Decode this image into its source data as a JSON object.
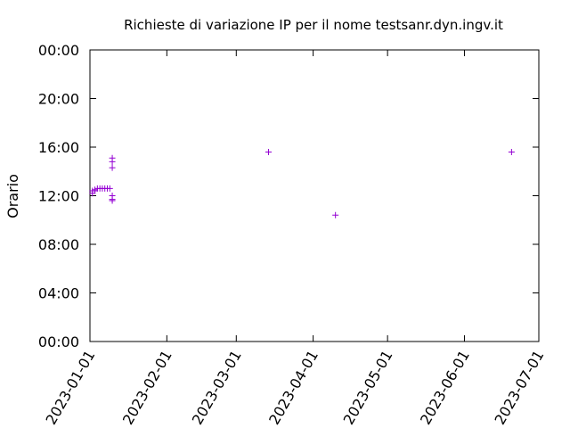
{
  "chart_data": {
    "type": "scatter",
    "title": "Richieste di variazione IP per il nome testsanr.dyn.ingv.it",
    "y_label": "Orario",
    "x": [
      "2023-01-02",
      "2023-01-02",
      "2023-01-03",
      "2023-01-03",
      "2023-01-04",
      "2023-01-05",
      "2023-01-06",
      "2023-01-07",
      "2023-01-08",
      "2023-01-09",
      "2023-01-10",
      "2023-01-10",
      "2023-01-10",
      "2023-01-10",
      "2023-01-10",
      "2023-01-10",
      "2023-03-14",
      "2023-04-10",
      "2023-06-20"
    ],
    "values": [
      12.2,
      12.4,
      12.4,
      12.5,
      12.6,
      12.6,
      12.6,
      12.6,
      12.6,
      12.6,
      15.1,
      14.8,
      14.3,
      12.0,
      11.7,
      11.6,
      15.6,
      10.4,
      15.6
    ],
    "color": "#9400d3",
    "xlim": [
      "2023-01-01",
      "2023-07-01"
    ],
    "xticks": [
      "2023-01-01",
      "2023-02-01",
      "2023-03-01",
      "2023-04-01",
      "2023-05-01",
      "2023-06-01",
      "2023-07-01"
    ],
    "ylim": [
      0,
      24
    ],
    "yticks": [
      {
        "value": 0,
        "label": "00:00"
      },
      {
        "value": 4,
        "label": "04:00"
      },
      {
        "value": 8,
        "label": "08:00"
      },
      {
        "value": 12,
        "label": "12:00"
      },
      {
        "value": 16,
        "label": "16:00"
      },
      {
        "value": 20,
        "label": "20:00"
      },
      {
        "value": 24,
        "label": "00:00"
      }
    ],
    "grid": false
  }
}
